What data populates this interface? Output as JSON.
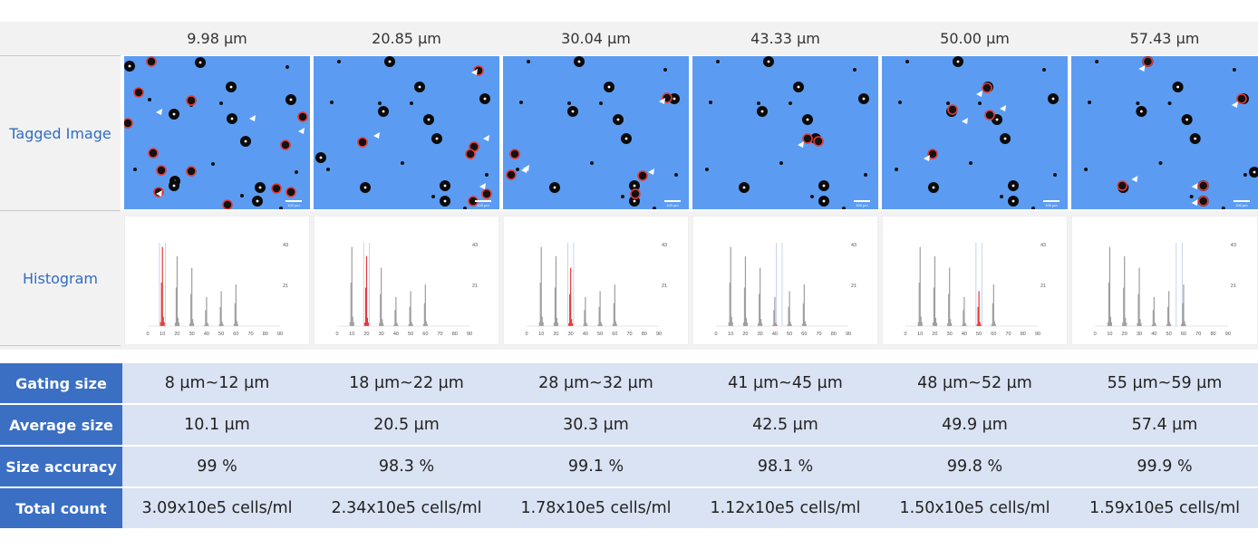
{
  "columns": [
    "9.98 µm",
    "20.85 µm",
    "30.04 µm",
    "43.33 µm",
    "50.00 µm",
    "57.43 µm"
  ],
  "rows": {
    "tagged_label": "Tagged Image",
    "histogram_label": "Histogram"
  },
  "histogram": {
    "x_ticks": [
      "0",
      "10",
      "20",
      "30",
      "40",
      "50",
      "60",
      "70",
      "80",
      "90"
    ],
    "y_ticks": [
      "43",
      "21"
    ],
    "highlight_color": "#e53935",
    "bar_color": "#9e9e9e",
    "gates": [
      [
        8,
        12
      ],
      [
        18,
        22
      ],
      [
        28,
        32
      ],
      [
        41,
        45
      ],
      [
        48,
        52
      ],
      [
        55,
        59
      ]
    ]
  },
  "scale_bar_label": "100 µm",
  "table": [
    {
      "label": "Gating size",
      "values": [
        "8 µm~12 µm",
        "18 µm~22 µm",
        "28 µm~32 µm",
        "41 µm~45 µm",
        "48 µm~52 µm",
        "55 µm~59 µm"
      ]
    },
    {
      "label": "Average size",
      "values": [
        "10.1 µm",
        "20.5 µm",
        "30.3 µm",
        "42.5 µm",
        "49.9 µm",
        "57.4 µm"
      ]
    },
    {
      "label": "Size accuracy",
      "values": [
        "99 %",
        "98.3 %",
        "99.1 %",
        "98.1 %",
        "99.8 %",
        "99.9 %"
      ]
    },
    {
      "label": "Total count",
      "values": [
        "3.09x10e5 cells/ml",
        "2.34x10e5 cells/ml",
        "1.78x10e5 cells/ml",
        "1.12x10e5 cells/ml",
        "1.50x10e5 cells/ml",
        "1.59x10e5 cells/ml"
      ]
    }
  ],
  "colors": {
    "header_blue": "#3a6fc4",
    "label_text_blue": "#2f6cc4",
    "row_bg": "#dae3f3",
    "image_bg": "#5b9cf2",
    "tag_red": "#e53935"
  }
}
